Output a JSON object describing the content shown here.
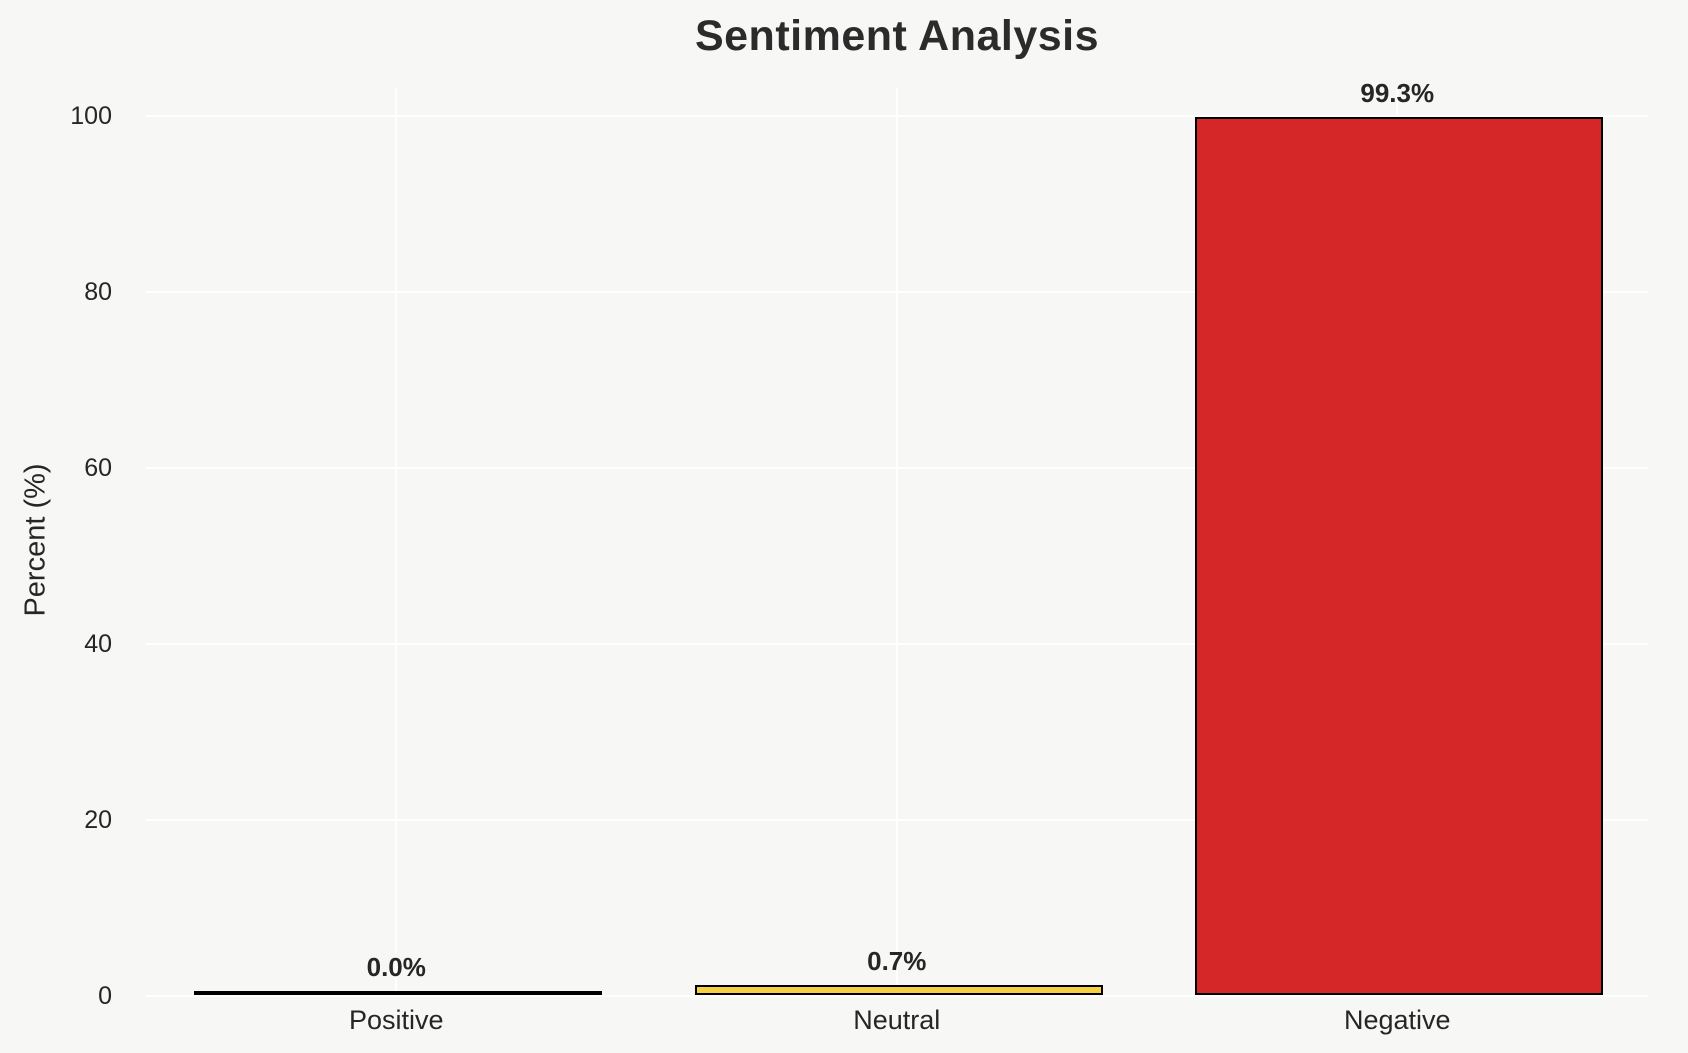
{
  "chart_data": {
    "type": "bar",
    "title": "Sentiment Analysis",
    "categories": [
      "Positive",
      "Neutral",
      "Negative"
    ],
    "values": [
      0.0,
      0.7,
      99.3
    ],
    "value_labels": [
      "0.0%",
      "0.7%",
      "99.3%"
    ],
    "xlabel": "",
    "ylabel": "Percent (%)",
    "ytick_labels": [
      "0",
      "20",
      "40",
      "60",
      "80",
      "100"
    ],
    "ytick_values": [
      0,
      20,
      40,
      60,
      80,
      100
    ],
    "ylim": [
      0,
      105
    ],
    "grid": true,
    "legend": false,
    "colors": {
      "background": "#f7f7f5",
      "grid_line": "#ffffff",
      "bar_fills": [
        null,
        "#f5d042",
        "#d62728"
      ],
      "bar_edge": "#000000",
      "text": "#262626",
      "title_text": "#2b2b2b"
    }
  }
}
